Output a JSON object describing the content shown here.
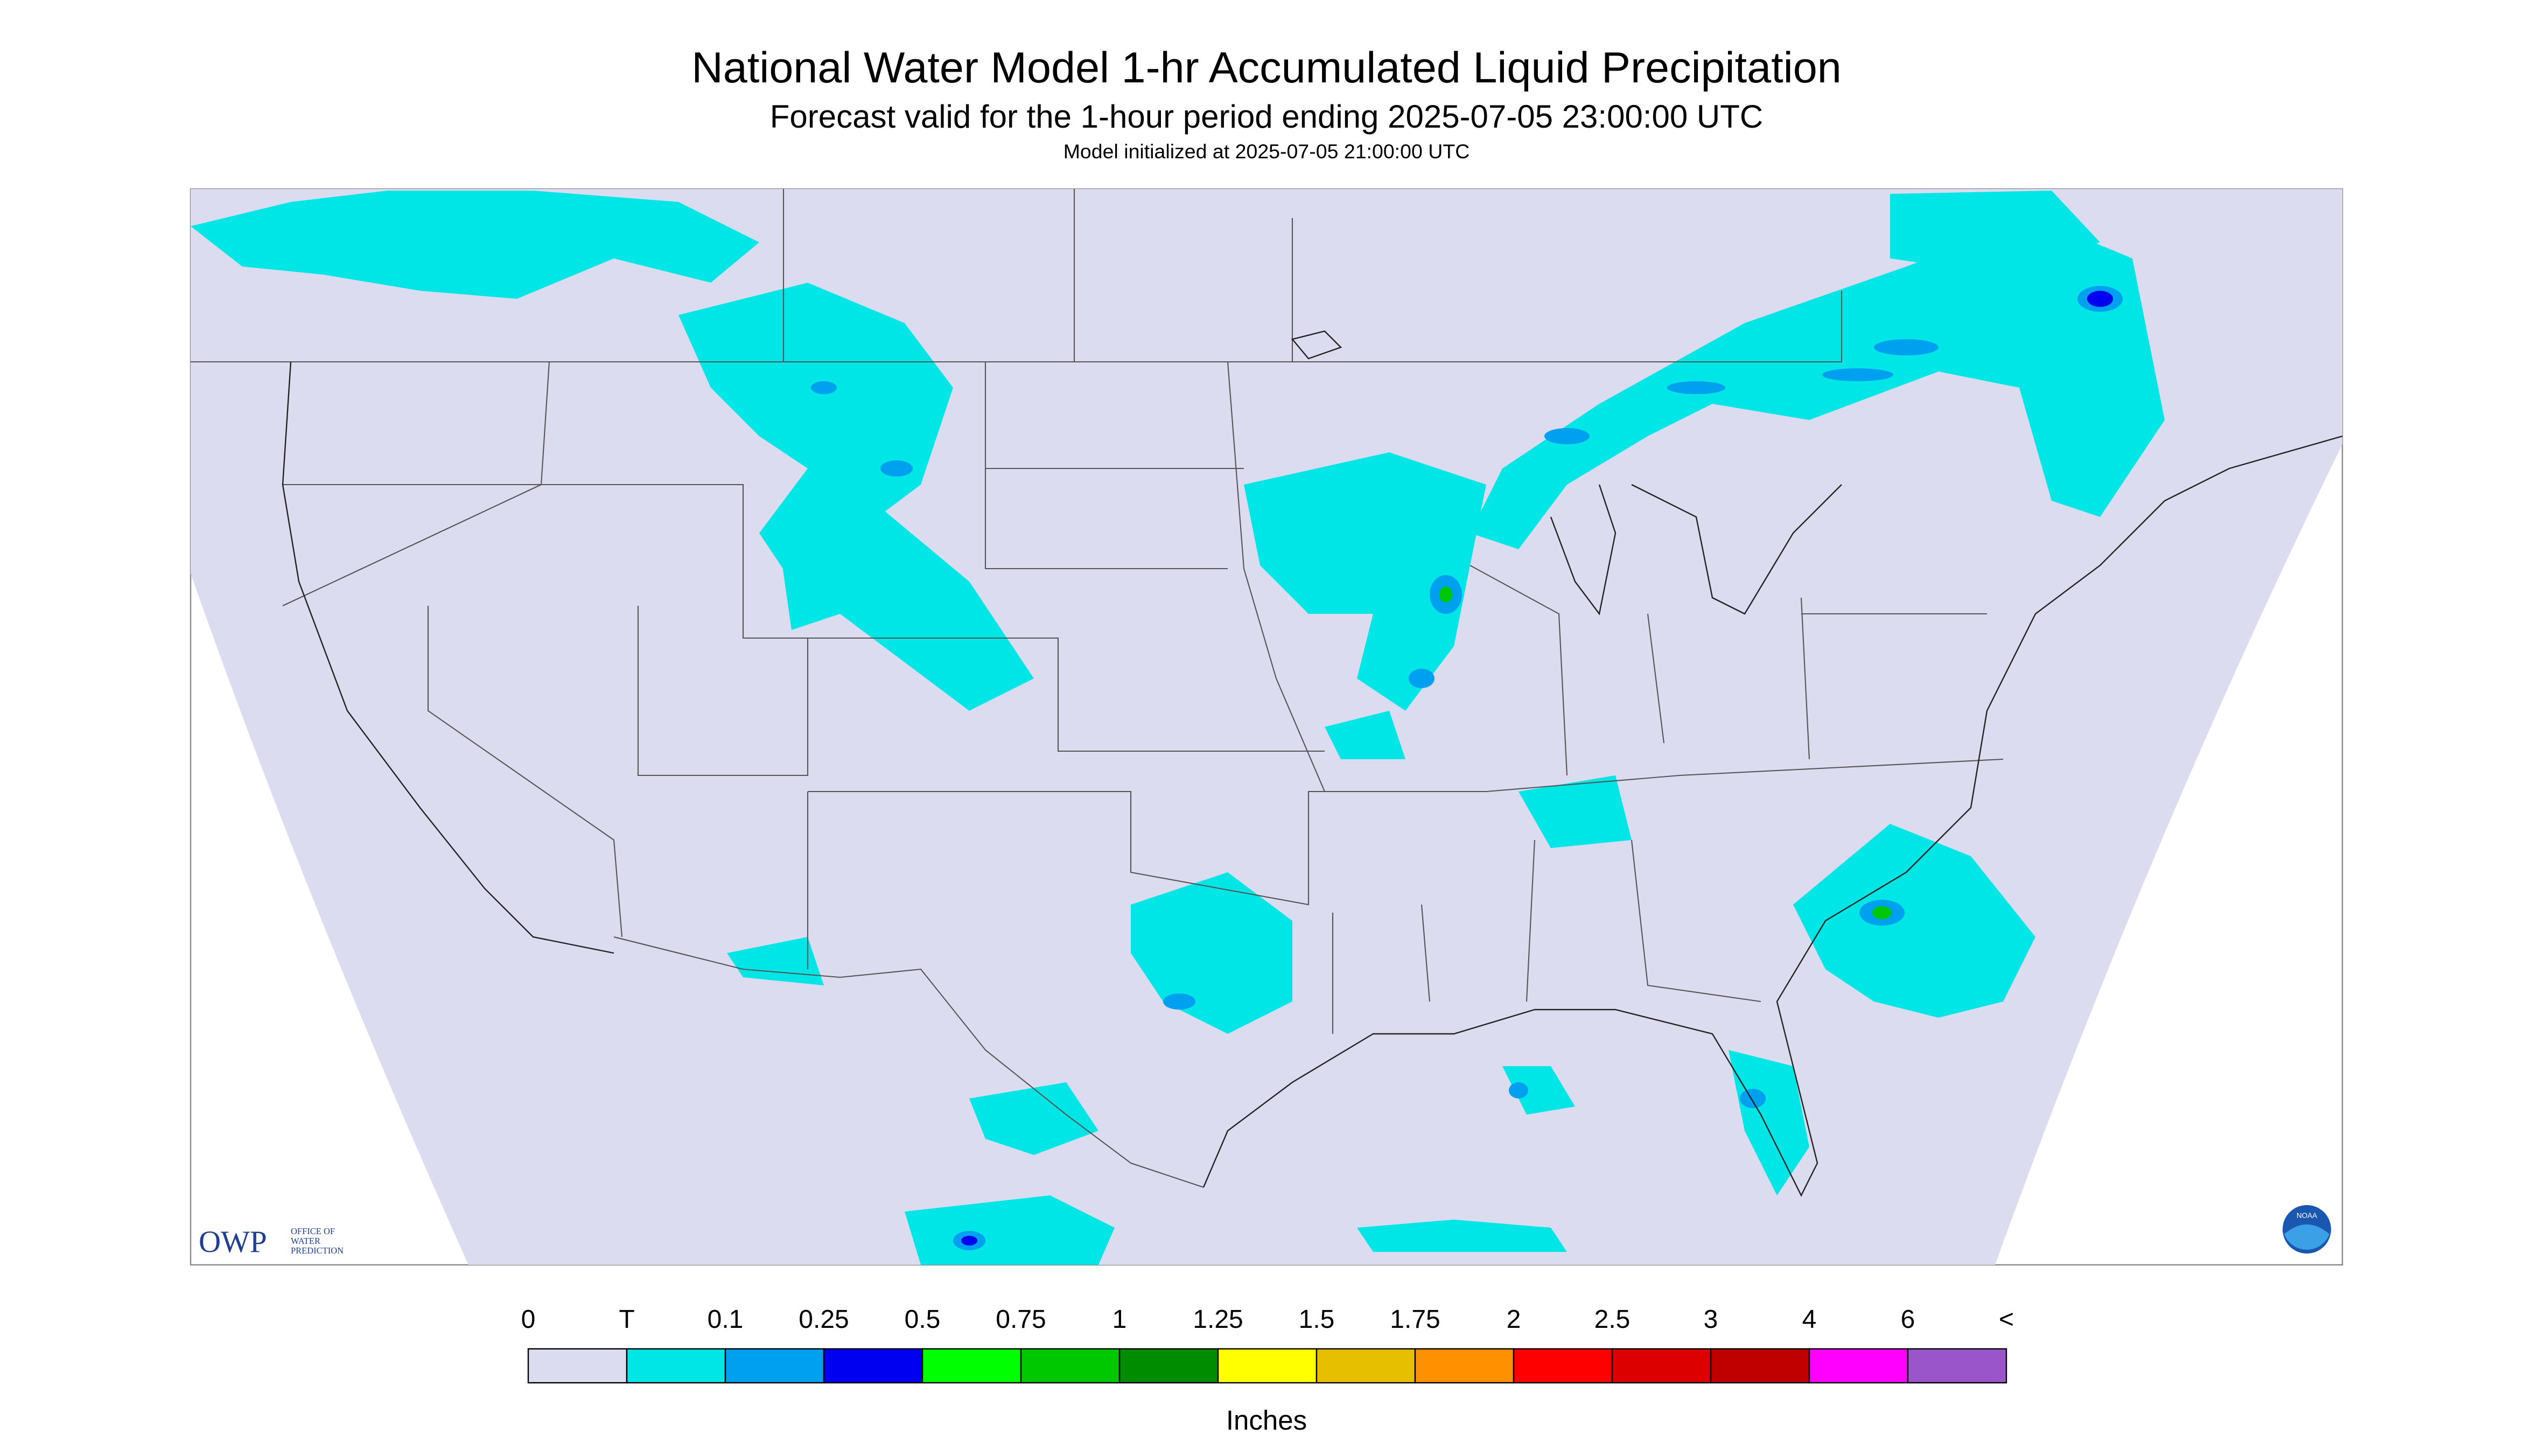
{
  "header": {
    "title": "National Water Model 1-hr Accumulated Liquid Precipitation",
    "subtitle": "Forecast valid for the 1-hour period ending 2025-07-05 23:00:00 UTC",
    "init": "Model initialized at 2025-07-05 21:00:00 UTC"
  },
  "legend": {
    "labels": [
      "0",
      "T",
      "0.1",
      "0.25",
      "0.5",
      "0.75",
      "1",
      "1.25",
      "1.5",
      "1.75",
      "2",
      "2.5",
      "3",
      "4",
      "6",
      "<"
    ],
    "colors": [
      "#dcdcf0",
      "#00e6e6",
      "#00a0f0",
      "#0000f0",
      "#00ff00",
      "#00c800",
      "#008c00",
      "#ffff00",
      "#e6c000",
      "#ff9000",
      "#ff0000",
      "#dc0000",
      "#c00000",
      "#ff00ff",
      "#9955c9"
    ],
    "unit": "Inches"
  },
  "logo": {
    "mark": "OWP",
    "line1": "OFFICE OF",
    "line2": "WATER",
    "line3": "PREDICTION",
    "noaa": "NOAA"
  }
}
